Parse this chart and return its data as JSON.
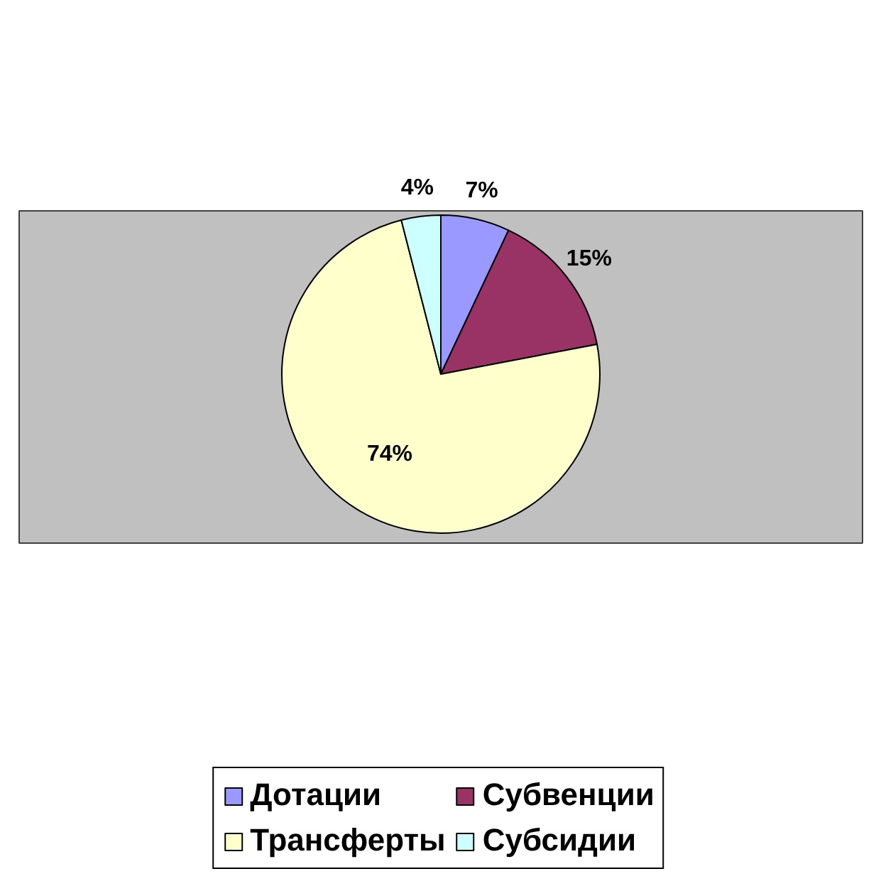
{
  "chart_data": {
    "type": "pie",
    "categories": [
      "Дотации",
      "Субвенции",
      "Трансферты",
      "Субсидии"
    ],
    "values": [
      7,
      15,
      74,
      4
    ],
    "colors": [
      "#9999ff",
      "#993366",
      "#ffffcc",
      "#ccffff"
    ],
    "value_labels": [
      "7%",
      "15%",
      "74%",
      "4%"
    ],
    "legend": "bottom"
  }
}
